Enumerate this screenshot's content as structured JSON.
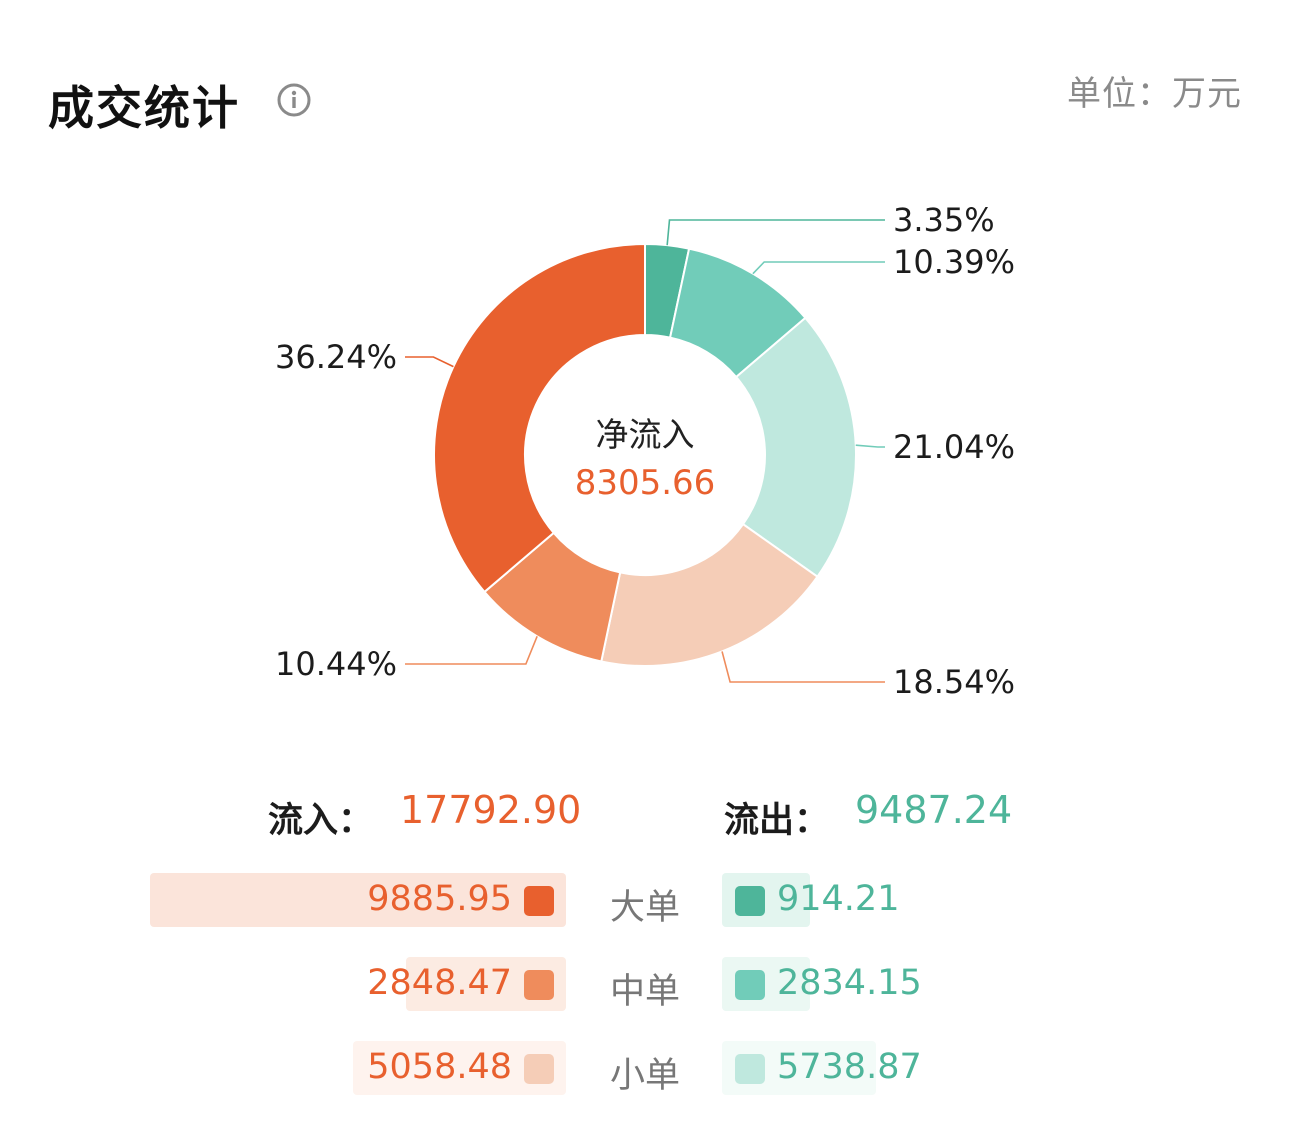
{
  "header": {
    "title": "成交统计",
    "info_icon": "info-circle-icon",
    "unit": "单位：万元"
  },
  "center": {
    "label": "净流入",
    "value": "8305.66"
  },
  "colors": {
    "in_large": "#e8602e",
    "in_medium": "#ef8c5c",
    "in_small": "#f5cdb7",
    "out_large": "#4eb59a",
    "out_medium": "#71ccb9",
    "out_small": "#bfe8de",
    "in_text": "#e8602e",
    "out_text": "#4eb59a",
    "in_bar_large": "#fbe4da",
    "in_bar_medium": "#fcebe2",
    "in_bar_small": "#fef3ee",
    "out_bar_large": "#e3f5ef",
    "out_bar_medium": "#ebf8f3",
    "out_bar_small": "#f3fbf8"
  },
  "chart_data": {
    "type": "pie",
    "donut": true,
    "slices": [
      {
        "label": "流出大单",
        "value": 3.35,
        "text": "3.35%",
        "color": "#4eb59a"
      },
      {
        "label": "流出中单",
        "value": 10.39,
        "text": "10.39%",
        "color": "#71ccb9"
      },
      {
        "label": "流出小单",
        "value": 21.04,
        "text": "21.04%",
        "color": "#bfe8de"
      },
      {
        "label": "流入小单",
        "value": 18.54,
        "text": "18.54%",
        "color": "#f5cdb7"
      },
      {
        "label": "流入中单",
        "value": 10.44,
        "text": "10.44%",
        "color": "#ef8c5c"
      },
      {
        "label": "流入大单",
        "value": 36.24,
        "text": "36.24%",
        "color": "#e8602e"
      }
    ]
  },
  "totals": {
    "in_label": "流入：",
    "in_value": "17792.90",
    "out_label": "流出：",
    "out_value": "9487.24"
  },
  "breakdown": [
    {
      "category": "大单",
      "in": "9885.95",
      "in_num": 9885.95,
      "out": "914.21",
      "out_num": 914.21
    },
    {
      "category": "中单",
      "in": "2848.47",
      "in_num": 2848.47,
      "out": "2834.15",
      "out_num": 2834.15
    },
    {
      "category": "小单",
      "in": "5058.48",
      "in_num": 5058.48,
      "out": "5738.87",
      "out_num": 5738.87
    }
  ]
}
